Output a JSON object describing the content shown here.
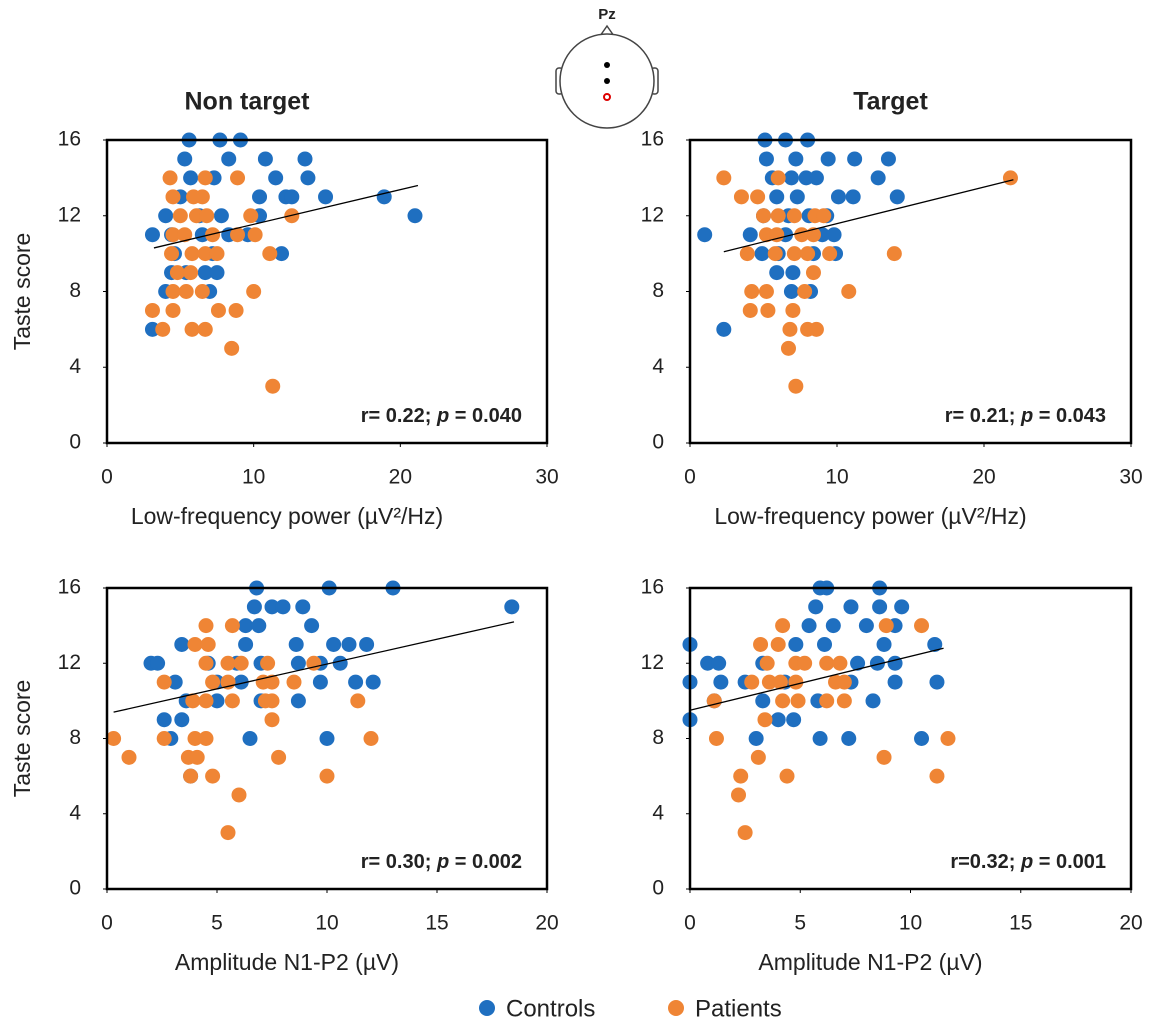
{
  "electrode": "Pz",
  "chart_data": [
    {
      "type": "scatter",
      "title": "Non target",
      "xlabel": "Low-frequency power (µV²/Hz)",
      "ylabel": "Taste score",
      "xlim": [
        0,
        30
      ],
      "ylim": [
        0,
        16
      ],
      "xticks": [
        0,
        10,
        20,
        30
      ],
      "yticks": [
        0,
        4,
        8,
        12,
        16
      ],
      "series": [
        {
          "name": "Controls",
          "color": "#1f6fc0",
          "x": [
            5.6,
            7.7,
            9.1,
            5.3,
            8.3,
            10.8,
            13.5,
            5.7,
            7.3,
            11.5,
            13.7,
            5.0,
            10.4,
            12.2,
            12.6,
            14.9,
            18.9,
            4.0,
            6.3,
            7.8,
            10.4,
            21.0,
            3.1,
            4.4,
            6.5,
            8.3,
            9.6,
            4.6,
            7.2,
            11.9,
            4.4,
            5.4,
            6.7,
            7.5,
            4.0,
            7.0,
            3.1
          ],
          "values": [
            16,
            16,
            16,
            15,
            15,
            15,
            15,
            14,
            14,
            14,
            14,
            13,
            13,
            13,
            13,
            13,
            13,
            12,
            12,
            12,
            12,
            12,
            11,
            11,
            11,
            11,
            11,
            10,
            10,
            10,
            9,
            9,
            9,
            9,
            8,
            8,
            6
          ]
        },
        {
          "name": "Patients",
          "color": "#ef8535",
          "x": [
            4.3,
            6.7,
            8.9,
            4.5,
            5.9,
            6.5,
            5.0,
            6.1,
            6.8,
            9.8,
            12.6,
            4.5,
            5.3,
            7.2,
            8.9,
            10.1,
            4.4,
            5.8,
            6.7,
            7.5,
            11.1,
            4.8,
            5.7,
            4.5,
            5.4,
            6.5,
            10.0,
            3.1,
            4.5,
            7.6,
            8.8,
            3.8,
            5.8,
            6.7,
            8.5,
            11.3
          ],
          "values": [
            14,
            14,
            14,
            13,
            13,
            13,
            12,
            12,
            12,
            12,
            12,
            11,
            11,
            11,
            11,
            11,
            10,
            10,
            10,
            10,
            10,
            9,
            9,
            8,
            8,
            8,
            8,
            7,
            7,
            7,
            7,
            6,
            6,
            6,
            5,
            3
          ]
        }
      ],
      "trendline": {
        "x": [
          3.2,
          21.2
        ],
        "y": [
          10.3,
          13.6
        ]
      },
      "annotation": {
        "prefix": "r= 0.22; ",
        "italic": "p",
        "suffix": " = 0.040"
      }
    },
    {
      "type": "scatter",
      "title": "Target",
      "xlabel": "Low-frequency power (µV²/Hz)",
      "xlim": [
        0,
        30
      ],
      "ylim": [
        0,
        16
      ],
      "xticks": [
        0,
        10,
        20,
        30
      ],
      "yticks": [
        0,
        4,
        8,
        12,
        16
      ],
      "series": [
        {
          "name": "Controls",
          "color": "#1f6fc0",
          "x": [
            5.1,
            6.5,
            8.0,
            5.2,
            7.2,
            9.4,
            11.2,
            13.5,
            5.6,
            6.9,
            7.9,
            8.6,
            12.8,
            5.9,
            7.3,
            10.1,
            11.1,
            14.1,
            5.0,
            6.7,
            8.1,
            9.3,
            1.0,
            4.1,
            6.5,
            9.0,
            9.8,
            4.9,
            6.0,
            8.4,
            9.9,
            5.9,
            7.0,
            6.9,
            8.2,
            2.3
          ],
          "values": [
            16,
            16,
            16,
            15,
            15,
            15,
            15,
            15,
            14,
            14,
            14,
            14,
            14,
            13,
            13,
            13,
            13,
            13,
            12,
            12,
            12,
            12,
            11,
            11,
            11,
            11,
            11,
            10,
            10,
            10,
            10,
            9,
            9,
            8,
            8,
            6
          ]
        },
        {
          "name": "Patients",
          "color": "#ef8535",
          "x": [
            2.3,
            6.0,
            21.8,
            3.5,
            4.6,
            5.0,
            6.0,
            7.1,
            8.5,
            9.1,
            5.2,
            5.9,
            7.6,
            8.4,
            3.9,
            5.8,
            7.1,
            8.0,
            9.5,
            13.9,
            8.4,
            4.2,
            5.2,
            7.8,
            10.8,
            4.1,
            5.3,
            7.0,
            6.8,
            8.0,
            8.6,
            6.7,
            7.2
          ],
          "values": [
            14,
            14,
            14,
            13,
            13,
            12,
            12,
            12,
            12,
            12,
            11,
            11,
            11,
            11,
            10,
            10,
            10,
            10,
            10,
            10,
            9,
            8,
            8,
            8,
            8,
            7,
            7,
            7,
            6,
            6,
            6,
            5,
            3
          ]
        }
      ],
      "trendline": {
        "x": [
          2.3,
          22.0
        ],
        "y": [
          10.1,
          13.9
        ]
      },
      "annotation": {
        "prefix": "r= 0.21; ",
        "italic": "p",
        "suffix": " = 0.043"
      }
    },
    {
      "type": "scatter",
      "xlabel": "Amplitude N1-P2 (µV)",
      "ylabel": "Taste score",
      "xlim": [
        0,
        20
      ],
      "ylim": [
        0,
        16
      ],
      "xticks": [
        0,
        5,
        10,
        15,
        20
      ],
      "yticks": [
        0,
        4,
        8,
        12,
        16
      ],
      "series": [
        {
          "name": "Controls",
          "color": "#1f6fc0",
          "x": [
            6.8,
            10.1,
            13.0,
            6.7,
            7.5,
            8.0,
            8.9,
            18.4,
            6.3,
            6.9,
            9.3,
            3.4,
            6.3,
            8.6,
            10.3,
            11.0,
            11.8,
            2.0,
            2.3,
            4.6,
            5.9,
            7.0,
            8.7,
            9.7,
            10.6,
            3.1,
            5.0,
            6.1,
            9.7,
            11.3,
            12.1,
            3.6,
            5.0,
            7.0,
            8.7,
            2.6,
            3.4,
            2.9,
            6.5,
            10.0,
            3.8
          ],
          "values": [
            16,
            16,
            16,
            15,
            15,
            15,
            15,
            15,
            14,
            14,
            14,
            13,
            13,
            13,
            13,
            13,
            13,
            12,
            12,
            12,
            12,
            12,
            12,
            12,
            12,
            11,
            11,
            11,
            11,
            11,
            11,
            10,
            10,
            10,
            10,
            9,
            9,
            8,
            8,
            8,
            6
          ]
        },
        {
          "name": "Patients",
          "color": "#ef8535",
          "x": [
            4.5,
            5.7,
            4.0,
            4.6,
            4.5,
            5.5,
            6.1,
            7.3,
            9.4,
            2.6,
            4.8,
            5.5,
            7.1,
            7.5,
            8.5,
            3.9,
            4.5,
            5.7,
            7.2,
            7.5,
            11.4,
            7.5,
            0.3,
            2.6,
            4.0,
            4.5,
            12.0,
            1.0,
            3.7,
            4.1,
            7.8,
            3.8,
            4.8,
            10.0,
            6.0,
            5.5
          ],
          "values": [
            14,
            14,
            13,
            13,
            12,
            12,
            12,
            12,
            12,
            11,
            11,
            11,
            11,
            11,
            11,
            10,
            10,
            10,
            10,
            10,
            10,
            9,
            8,
            8,
            8,
            8,
            8,
            7,
            7,
            7,
            7,
            6,
            6,
            6,
            5,
            3
          ]
        }
      ],
      "trendline": {
        "x": [
          0.3,
          18.5
        ],
        "y": [
          9.4,
          14.2
        ]
      },
      "annotation": {
        "prefix": "r= 0.30; ",
        "italic": "p",
        "suffix": " = 0.002"
      }
    },
    {
      "type": "scatter",
      "xlabel": "Amplitude N1-P2 (µV)",
      "xlim": [
        0,
        20
      ],
      "ylim": [
        0,
        16
      ],
      "xticks": [
        0,
        5,
        10,
        15,
        20
      ],
      "yticks": [
        0,
        4,
        8,
        12,
        16
      ],
      "series": [
        {
          "name": "Controls",
          "color": "#1f6fc0",
          "x": [
            5.9,
            6.2,
            8.6,
            5.7,
            7.3,
            8.6,
            9.6,
            5.4,
            6.5,
            8.0,
            9.3,
            0,
            4.8,
            6.1,
            8.8,
            11.1,
            0.8,
            1.3,
            3.3,
            7.6,
            8.5,
            9.3,
            0,
            1.4,
            2.5,
            4.3,
            7.3,
            9.3,
            11.2,
            1.1,
            3.3,
            5.8,
            8.3,
            0,
            4.0,
            4.7,
            3.0,
            5.9,
            7.2,
            10.5
          ],
          "values": [
            16,
            16,
            16,
            15,
            15,
            15,
            15,
            14,
            14,
            14,
            14,
            13,
            13,
            13,
            13,
            13,
            12,
            12,
            12,
            12,
            12,
            12,
            11,
            11,
            11,
            11,
            11,
            11,
            11,
            10,
            10,
            10,
            10,
            9,
            9,
            9,
            8,
            8,
            8,
            8
          ]
        },
        {
          "name": "Patients",
          "color": "#ef8535",
          "x": [
            4.2,
            8.9,
            10.5,
            3.2,
            4.0,
            3.5,
            4.8,
            5.2,
            6.2,
            6.8,
            2.8,
            3.6,
            4.1,
            4.8,
            6.6,
            7.0,
            1.1,
            4.2,
            4.9,
            6.2,
            7.0,
            3.4,
            1.2,
            11.7,
            3.1,
            8.8,
            2.3,
            4.4,
            11.2,
            2.2,
            2.5
          ],
          "values": [
            14,
            14,
            14,
            13,
            13,
            12,
            12,
            12,
            12,
            12,
            11,
            11,
            11,
            11,
            11,
            11,
            10,
            10,
            10,
            10,
            10,
            9,
            8,
            8,
            7,
            7,
            6,
            6,
            6,
            5,
            3
          ]
        }
      ],
      "trendline": {
        "x": [
          0,
          11.5
        ],
        "y": [
          9.5,
          12.8
        ]
      },
      "annotation": {
        "prefix": "r=0.32; ",
        "italic": "p",
        "suffix": " = 0.001"
      }
    }
  ]
}
